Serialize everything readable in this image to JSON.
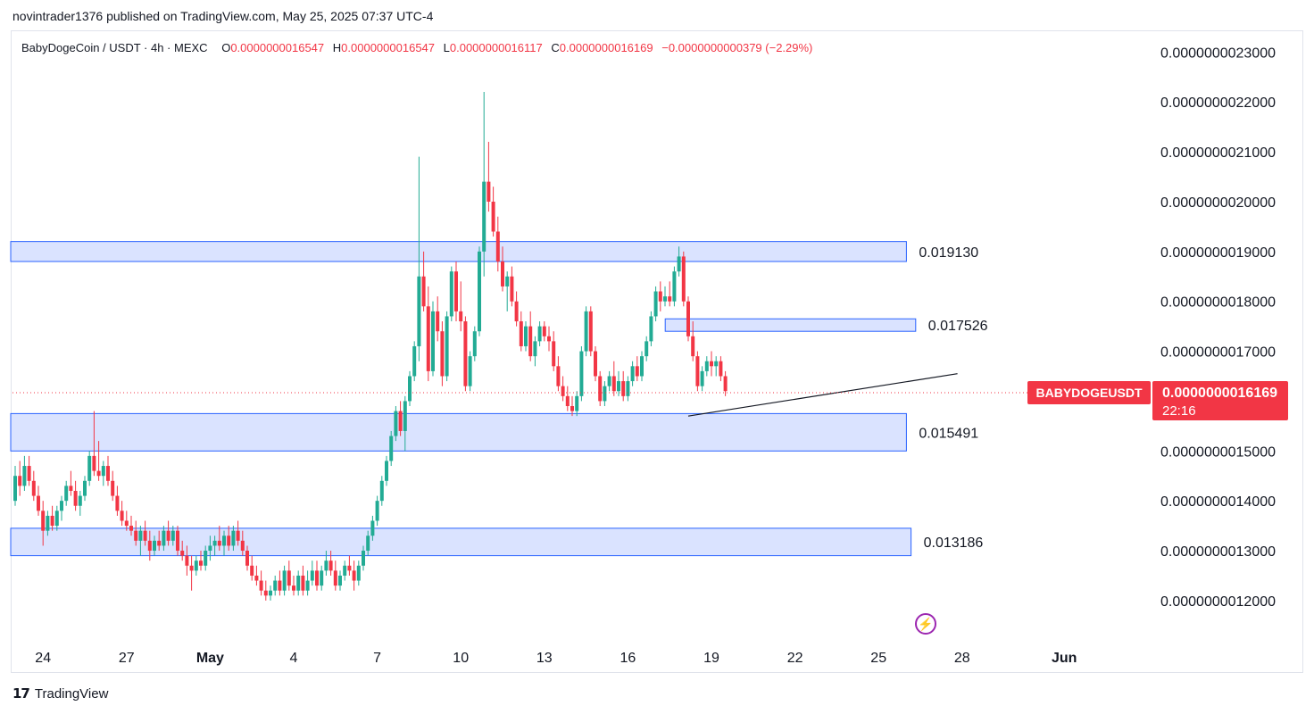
{
  "header": {
    "published": "novintrader1376 published on TradingView.com, May 25, 2025 07:37 UTC-4"
  },
  "legend": {
    "symbol": "BabyDogeCoin / USDT · 4h · MEXC",
    "open_label": "O",
    "open": "0.0000000016547",
    "high_label": "H",
    "high": "0.0000000016547",
    "low_label": "L",
    "low": "0.0000000016117",
    "close_label": "C",
    "close": "0.0000000016169",
    "change": "−0.0000000000379 (−2.29%)"
  },
  "footer": {
    "brand": "TradingView",
    "logo_icon": "tradingview-logo-icon"
  },
  "flash_icon": "lightning-icon",
  "colors": {
    "up": "#22ab94",
    "down": "#f23645",
    "zone_fill": "#d6e0ff",
    "zone_stroke": "#2962ff"
  },
  "chart_data": {
    "type": "candlestick",
    "ylim": [
      1.13e-09,
      2.34e-09
    ],
    "ytick_values": [
      2.3e-09,
      2.2e-09,
      2.1e-09,
      2e-09,
      1.9e-09,
      1.8e-09,
      1.7e-09,
      1.5e-09,
      1.4e-09,
      1.3e-09,
      1.2e-09
    ],
    "yticks": [
      "0.0000000023000",
      "0.0000000022000",
      "0.0000000021000",
      "0.0000000020000",
      "0.0000000019000",
      "0.0000000018000",
      "0.0000000017000",
      "0.0000000015000",
      "0.0000000014000",
      "0.0000000013000",
      "0.0000000012000"
    ],
    "xticks": [
      {
        "label": "24",
        "i": 6
      },
      {
        "label": "27",
        "i": 24
      },
      {
        "label": "May",
        "i": 42
      },
      {
        "label": "4",
        "i": 60
      },
      {
        "label": "7",
        "i": 78
      },
      {
        "label": "10",
        "i": 96
      },
      {
        "label": "13",
        "i": 114
      },
      {
        "label": "16",
        "i": 132
      },
      {
        "label": "19",
        "i": 150
      },
      {
        "label": "22",
        "i": 168
      },
      {
        "label": "25",
        "i": 186
      },
      {
        "label": "28",
        "i": 204
      },
      {
        "label": "Jun",
        "i": 226
      }
    ],
    "zones": [
      {
        "label": "0.019130",
        "low": 1.88e-09,
        "high": 1.92e-09,
        "i_start": 0,
        "i_end": 192
      },
      {
        "label": "0.017526",
        "low": 1.74e-09,
        "high": 1.765e-09,
        "i_start": 141,
        "i_end": 194
      },
      {
        "label": "0.015491",
        "low": 1.5e-09,
        "high": 1.575e-09,
        "i_start": 0,
        "i_end": 192
      },
      {
        "label": "0.013186",
        "low": 1.29e-09,
        "high": 1.345e-09,
        "i_start": 0,
        "i_end": 193
      }
    ],
    "trendline": {
      "i_start": 145,
      "p_start": 1.57e-09,
      "i_end": 203,
      "p_end": 1.655e-09
    },
    "current": {
      "symbol": "BABYDOGEUSDT",
      "price_label": "0.0000000016169",
      "price": 1.6169e-09,
      "countdown": "22:16"
    },
    "candles": [
      [
        1.4e-09,
        1.47e-09,
        1.39e-09,
        1.45e-09
      ],
      [
        1.45e-09,
        1.48e-09,
        1.41e-09,
        1.43e-09
      ],
      [
        1.43e-09,
        1.49e-09,
        1.42e-09,
        1.47e-09
      ],
      [
        1.47e-09,
        1.49e-09,
        1.43e-09,
        1.44e-09
      ],
      [
        1.44e-09,
        1.46e-09,
        1.4e-09,
        1.41e-09
      ],
      [
        1.41e-09,
        1.43e-09,
        1.37e-09,
        1.38e-09
      ],
      [
        1.38e-09,
        1.4e-09,
        1.31e-09,
        1.34e-09
      ],
      [
        1.34e-09,
        1.38e-09,
        1.33e-09,
        1.37e-09
      ],
      [
        1.37e-09,
        1.39e-09,
        1.34e-09,
        1.35e-09
      ],
      [
        1.35e-09,
        1.39e-09,
        1.34e-09,
        1.38e-09
      ],
      [
        1.38e-09,
        1.41e-09,
        1.36e-09,
        1.4e-09
      ],
      [
        1.4e-09,
        1.44e-09,
        1.39e-09,
        1.43e-09
      ],
      [
        1.43e-09,
        1.46e-09,
        1.41e-09,
        1.42e-09
      ],
      [
        1.42e-09,
        1.44e-09,
        1.38e-09,
        1.39e-09
      ],
      [
        1.39e-09,
        1.42e-09,
        1.37e-09,
        1.41e-09
      ],
      [
        1.41e-09,
        1.45e-09,
        1.4e-09,
        1.44e-09
      ],
      [
        1.44e-09,
        1.5e-09,
        1.43e-09,
        1.49e-09
      ],
      [
        1.49e-09,
        1.58e-09,
        1.45e-09,
        1.46e-09
      ],
      [
        1.46e-09,
        1.52e-09,
        1.44e-09,
        1.45e-09
      ],
      [
        1.45e-09,
        1.48e-09,
        1.43e-09,
        1.47e-09
      ],
      [
        1.47e-09,
        1.49e-09,
        1.43e-09,
        1.44e-09
      ],
      [
        1.44e-09,
        1.46e-09,
        1.4e-09,
        1.41e-09
      ],
      [
        1.41e-09,
        1.43e-09,
        1.37e-09,
        1.38e-09
      ],
      [
        1.38e-09,
        1.4e-09,
        1.35e-09,
        1.36e-09
      ],
      [
        1.36e-09,
        1.38e-09,
        1.34e-09,
        1.35e-09
      ],
      [
        1.35e-09,
        1.37e-09,
        1.33e-09,
        1.34e-09
      ],
      [
        1.34e-09,
        1.36e-09,
        1.31e-09,
        1.32e-09
      ],
      [
        1.32e-09,
        1.35e-09,
        1.29e-09,
        1.34e-09
      ],
      [
        1.34e-09,
        1.36e-09,
        1.31e-09,
        1.32e-09
      ],
      [
        1.32e-09,
        1.34e-09,
        1.28e-09,
        1.3e-09
      ],
      [
        1.3e-09,
        1.33e-09,
        1.29e-09,
        1.32e-09
      ],
      [
        1.32e-09,
        1.34e-09,
        1.3e-09,
        1.31e-09
      ],
      [
        1.31e-09,
        1.35e-09,
        1.3e-09,
        1.34e-09
      ],
      [
        1.34e-09,
        1.36e-09,
        1.31e-09,
        1.32e-09
      ],
      [
        1.32e-09,
        1.35e-09,
        1.31e-09,
        1.34e-09
      ],
      [
        1.34e-09,
        1.35e-09,
        1.29e-09,
        1.3e-09
      ],
      [
        1.3e-09,
        1.32e-09,
        1.28e-09,
        1.29e-09
      ],
      [
        1.29e-09,
        1.31e-09,
        1.25e-09,
        1.27e-09
      ],
      [
        1.27e-09,
        1.29e-09,
        1.22e-09,
        1.26e-09
      ],
      [
        1.26e-09,
        1.29e-09,
        1.25e-09,
        1.28e-09
      ],
      [
        1.28e-09,
        1.3e-09,
        1.26e-09,
        1.27e-09
      ],
      [
        1.27e-09,
        1.31e-09,
        1.26e-09,
        1.3e-09
      ],
      [
        1.3e-09,
        1.33e-09,
        1.28e-09,
        1.31e-09
      ],
      [
        1.31e-09,
        1.33e-09,
        1.29e-09,
        1.32e-09
      ],
      [
        1.32e-09,
        1.35e-09,
        1.3e-09,
        1.31e-09
      ],
      [
        1.31e-09,
        1.34e-09,
        1.29e-09,
        1.33e-09
      ],
      [
        1.33e-09,
        1.35e-09,
        1.3e-09,
        1.31e-09
      ],
      [
        1.31e-09,
        1.35e-09,
        1.3e-09,
        1.34e-09
      ],
      [
        1.34e-09,
        1.36e-09,
        1.31e-09,
        1.32e-09
      ],
      [
        1.32e-09,
        1.34e-09,
        1.29e-09,
        1.3e-09
      ],
      [
        1.3e-09,
        1.31e-09,
        1.26e-09,
        1.27e-09
      ],
      [
        1.27e-09,
        1.29e-09,
        1.24e-09,
        1.25e-09
      ],
      [
        1.25e-09,
        1.27e-09,
        1.23e-09,
        1.24e-09
      ],
      [
        1.24e-09,
        1.26e-09,
        1.21e-09,
        1.22e-09
      ],
      [
        1.22e-09,
        1.24e-09,
        1.2e-09,
        1.21e-09
      ],
      [
        1.21e-09,
        1.23e-09,
        1.2e-09,
        1.22e-09
      ],
      [
        1.22e-09,
        1.25e-09,
        1.21e-09,
        1.24e-09
      ],
      [
        1.24e-09,
        1.26e-09,
        1.21e-09,
        1.22e-09
      ],
      [
        1.22e-09,
        1.27e-09,
        1.21e-09,
        1.26e-09
      ],
      [
        1.26e-09,
        1.28e-09,
        1.22e-09,
        1.23e-09
      ],
      [
        1.23e-09,
        1.25e-09,
        1.21e-09,
        1.22e-09
      ],
      [
        1.22e-09,
        1.26e-09,
        1.21e-09,
        1.25e-09
      ],
      [
        1.25e-09,
        1.27e-09,
        1.21e-09,
        1.22e-09
      ],
      [
        1.22e-09,
        1.26e-09,
        1.21e-09,
        1.24e-09
      ],
      [
        1.24e-09,
        1.28e-09,
        1.23e-09,
        1.26e-09
      ],
      [
        1.26e-09,
        1.28e-09,
        1.22e-09,
        1.23e-09
      ],
      [
        1.23e-09,
        1.27e-09,
        1.22e-09,
        1.26e-09
      ],
      [
        1.26e-09,
        1.3e-09,
        1.25e-09,
        1.28e-09
      ],
      [
        1.28e-09,
        1.3e-09,
        1.25e-09,
        1.26e-09
      ],
      [
        1.26e-09,
        1.28e-09,
        1.22e-09,
        1.23e-09
      ],
      [
        1.23e-09,
        1.26e-09,
        1.22e-09,
        1.25e-09
      ],
      [
        1.25e-09,
        1.28e-09,
        1.24e-09,
        1.27e-09
      ],
      [
        1.27e-09,
        1.29e-09,
        1.25e-09,
        1.26e-09
      ],
      [
        1.26e-09,
        1.28e-09,
        1.22e-09,
        1.24e-09
      ],
      [
        1.24e-09,
        1.28e-09,
        1.23e-09,
        1.27e-09
      ],
      [
        1.27e-09,
        1.31e-09,
        1.26e-09,
        1.3e-09
      ],
      [
        1.3e-09,
        1.34e-09,
        1.29e-09,
        1.33e-09
      ],
      [
        1.33e-09,
        1.37e-09,
        1.32e-09,
        1.36e-09
      ],
      [
        1.36e-09,
        1.41e-09,
        1.35e-09,
        1.4e-09
      ],
      [
        1.4e-09,
        1.45e-09,
        1.39e-09,
        1.44e-09
      ],
      [
        1.44e-09,
        1.49e-09,
        1.43e-09,
        1.48e-09
      ],
      [
        1.48e-09,
        1.54e-09,
        1.47e-09,
        1.53e-09
      ],
      [
        1.53e-09,
        1.59e-09,
        1.52e-09,
        1.58e-09
      ],
      [
        1.58e-09,
        1.6e-09,
        1.53e-09,
        1.54e-09
      ],
      [
        1.54e-09,
        1.61e-09,
        1.5e-09,
        1.6e-09
      ],
      [
        1.6e-09,
        1.66e-09,
        1.59e-09,
        1.65e-09
      ],
      [
        1.65e-09,
        1.72e-09,
        1.64e-09,
        1.71e-09
      ],
      [
        1.71e-09,
        2.09e-09,
        1.68e-09,
        1.85e-09
      ],
      [
        1.85e-09,
        1.9e-09,
        1.78e-09,
        1.79e-09
      ],
      [
        1.79e-09,
        1.83e-09,
        1.64e-09,
        1.66e-09
      ],
      [
        1.66e-09,
        1.8e-09,
        1.65e-09,
        1.78e-09
      ],
      [
        1.78e-09,
        1.81e-09,
        1.72e-09,
        1.74e-09
      ],
      [
        1.74e-09,
        1.76e-09,
        1.63e-09,
        1.65e-09
      ],
      [
        1.65e-09,
        1.78e-09,
        1.64e-09,
        1.77e-09
      ],
      [
        1.77e-09,
        1.87e-09,
        1.76e-09,
        1.86e-09
      ],
      [
        1.86e-09,
        1.88e-09,
        1.76e-09,
        1.78e-09
      ],
      [
        1.78e-09,
        1.84e-09,
        1.74e-09,
        1.76e-09
      ],
      [
        1.76e-09,
        1.77e-09,
        1.62e-09,
        1.63e-09
      ],
      [
        1.63e-09,
        1.7e-09,
        1.62e-09,
        1.69e-09
      ],
      [
        1.69e-09,
        1.75e-09,
        1.68e-09,
        1.74e-09
      ],
      [
        1.74e-09,
        1.91e-09,
        1.73e-09,
        1.9e-09
      ],
      [
        1.9e-09,
        2.22e-09,
        1.85e-09,
        2.04e-09
      ],
      [
        2.04e-09,
        2.12e-09,
        1.98e-09,
        2e-09
      ],
      [
        2e-09,
        2.03e-09,
        1.93e-09,
        1.94e-09
      ],
      [
        1.94e-09,
        1.97e-09,
        1.86e-09,
        1.88e-09
      ],
      [
        1.88e-09,
        1.91e-09,
        1.82e-09,
        1.83e-09
      ],
      [
        1.83e-09,
        1.86e-09,
        1.78e-09,
        1.85e-09
      ],
      [
        1.85e-09,
        1.87e-09,
        1.79e-09,
        1.8e-09
      ],
      [
        1.8e-09,
        1.82e-09,
        1.75e-09,
        1.76e-09
      ],
      [
        1.76e-09,
        1.78e-09,
        1.7e-09,
        1.71e-09
      ],
      [
        1.71e-09,
        1.76e-09,
        1.7e-09,
        1.75e-09
      ],
      [
        1.75e-09,
        1.78e-09,
        1.68e-09,
        1.69e-09
      ],
      [
        1.69e-09,
        1.73e-09,
        1.67e-09,
        1.72e-09
      ],
      [
        1.72e-09,
        1.76e-09,
        1.71e-09,
        1.75e-09
      ],
      [
        1.75e-09,
        1.76e-09,
        1.72e-09,
        1.73e-09
      ],
      [
        1.73e-09,
        1.75e-09,
        1.7e-09,
        1.72e-09
      ],
      [
        1.72e-09,
        1.74e-09,
        1.66e-09,
        1.67e-09
      ],
      [
        1.67e-09,
        1.69e-09,
        1.62e-09,
        1.63e-09
      ],
      [
        1.63e-09,
        1.65e-09,
        1.6e-09,
        1.61e-09
      ],
      [
        1.61e-09,
        1.63e-09,
        1.58e-09,
        1.59e-09
      ],
      [
        1.59e-09,
        1.61e-09,
        1.57e-09,
        1.58e-09
      ],
      [
        1.58e-09,
        1.62e-09,
        1.57e-09,
        1.61e-09
      ],
      [
        1.61e-09,
        1.71e-09,
        1.6e-09,
        1.7e-09
      ],
      [
        1.7e-09,
        1.79e-09,
        1.69e-09,
        1.78e-09
      ],
      [
        1.78e-09,
        1.79e-09,
        1.69e-09,
        1.7e-09
      ],
      [
        1.7e-09,
        1.71e-09,
        1.64e-09,
        1.65e-09
      ],
      [
        1.65e-09,
        1.66e-09,
        1.59e-09,
        1.6e-09
      ],
      [
        1.6e-09,
        1.64e-09,
        1.59e-09,
        1.63e-09
      ],
      [
        1.63e-09,
        1.66e-09,
        1.62e-09,
        1.65e-09
      ],
      [
        1.65e-09,
        1.68e-09,
        1.61e-09,
        1.62e-09
      ],
      [
        1.62e-09,
        1.66e-09,
        1.61e-09,
        1.64e-09
      ],
      [
        1.64e-09,
        1.66e-09,
        1.6e-09,
        1.61e-09
      ],
      [
        1.61e-09,
        1.65e-09,
        1.6e-09,
        1.64e-09
      ],
      [
        1.64e-09,
        1.68e-09,
        1.63e-09,
        1.67e-09
      ],
      [
        1.67e-09,
        1.69e-09,
        1.64e-09,
        1.65e-09
      ],
      [
        1.65e-09,
        1.7e-09,
        1.64e-09,
        1.69e-09
      ],
      [
        1.69e-09,
        1.73e-09,
        1.68e-09,
        1.72e-09
      ],
      [
        1.72e-09,
        1.78e-09,
        1.71e-09,
        1.77e-09
      ],
      [
        1.77e-09,
        1.83e-09,
        1.76e-09,
        1.82e-09
      ],
      [
        1.82e-09,
        1.84e-09,
        1.78e-09,
        1.8e-09
      ],
      [
        1.8e-09,
        1.83e-09,
        1.79e-09,
        1.81e-09
      ],
      [
        1.81e-09,
        1.84e-09,
        1.79e-09,
        1.8e-09
      ],
      [
        1.8e-09,
        1.87e-09,
        1.79e-09,
        1.86e-09
      ],
      [
        1.86e-09,
        1.91e-09,
        1.85e-09,
        1.89e-09
      ],
      [
        1.89e-09,
        1.9e-09,
        1.79e-09,
        1.8e-09
      ],
      [
        1.8e-09,
        1.81e-09,
        1.72e-09,
        1.73e-09
      ],
      [
        1.73e-09,
        1.76e-09,
        1.68e-09,
        1.69e-09
      ],
      [
        1.69e-09,
        1.7e-09,
        1.62e-09,
        1.63e-09
      ],
      [
        1.63e-09,
        1.67e-09,
        1.62e-09,
        1.66e-09
      ],
      [
        1.66e-09,
        1.69e-09,
        1.65e-09,
        1.68e-09
      ],
      [
        1.68e-09,
        1.7e-09,
        1.65e-09,
        1.67e-09
      ],
      [
        1.67e-09,
        1.69e-09,
        1.65e-09,
        1.68e-09
      ],
      [
        1.68e-09,
        1.69e-09,
        1.64e-09,
        1.65e-09
      ],
      [
        1.65e-09,
        1.66e-09,
        1.61e-09,
        1.62e-09
      ]
    ]
  }
}
